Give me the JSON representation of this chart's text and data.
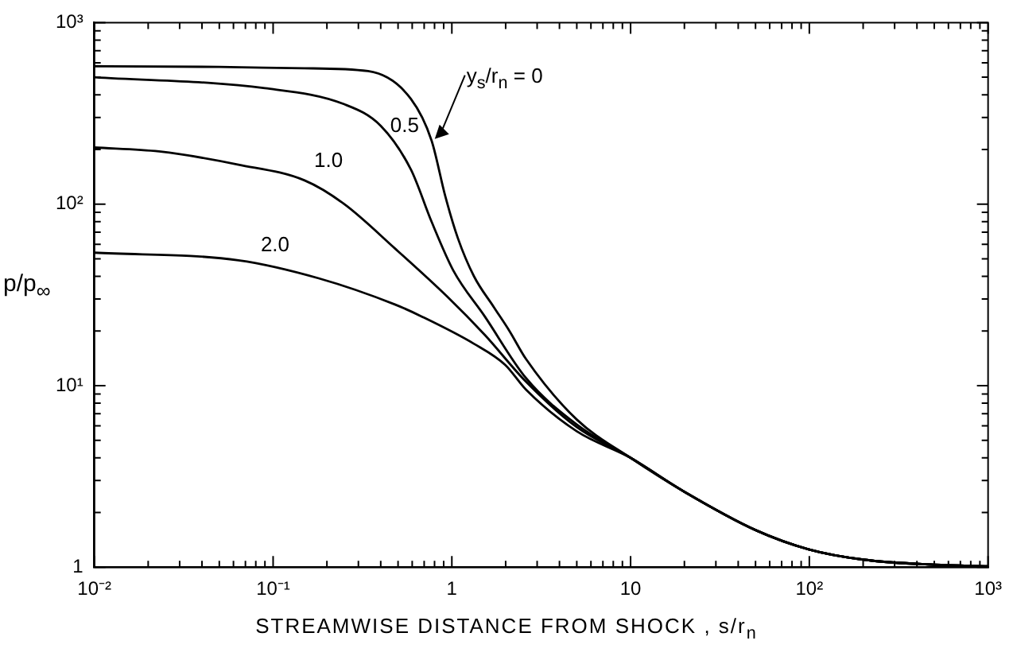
{
  "chart_data": {
    "type": "line",
    "xlabel": "STREAMWISE DISTANCE FROM SHOCK ,   s/r$_{n}$",
    "ylabel": "p/p$_{∞}$",
    "log": "xy",
    "color": "#000000",
    "line_style": "solid",
    "marker": "none",
    "grid": false,
    "legend": false,
    "xlim": [
      0.01,
      1000
    ],
    "ylim": [
      1,
      1000
    ],
    "xticks": [
      {
        "value": 0.01,
        "label": "10⁻²"
      },
      {
        "value": 0.02,
        "label": null
      },
      {
        "value": 0.03,
        "label": null
      },
      {
        "value": 0.04,
        "label": null
      },
      {
        "value": 0.05,
        "label": null
      },
      {
        "value": 0.06,
        "label": null
      },
      {
        "value": 0.07,
        "label": null
      },
      {
        "value": 0.08,
        "label": null
      },
      {
        "value": 0.09,
        "label": null
      },
      {
        "value": 0.1,
        "label": "10⁻¹"
      },
      {
        "value": 0.2,
        "label": null
      },
      {
        "value": 0.3,
        "label": null
      },
      {
        "value": 0.4,
        "label": null
      },
      {
        "value": 0.5,
        "label": null
      },
      {
        "value": 0.6,
        "label": null
      },
      {
        "value": 0.7,
        "label": null
      },
      {
        "value": 0.8,
        "label": null
      },
      {
        "value": 0.9,
        "label": null
      },
      1,
      {
        "value": 2,
        "label": null
      },
      {
        "value": 3,
        "label": null
      },
      {
        "value": 4,
        "label": null
      },
      {
        "value": 5,
        "label": null
      },
      {
        "value": 6,
        "label": null
      },
      {
        "value": 7,
        "label": null
      },
      {
        "value": 8,
        "label": null
      },
      {
        "value": 9,
        "label": null
      },
      10,
      {
        "value": 20,
        "label": null
      },
      {
        "value": 30,
        "label": null
      },
      {
        "value": 40,
        "label": null
      },
      {
        "value": 50,
        "label": null
      },
      {
        "value": 60,
        "label": null
      },
      {
        "value": 70,
        "label": null
      },
      {
        "value": 80,
        "label": null
      },
      {
        "value": 90,
        "label": null
      },
      {
        "value": 100,
        "label": "10²"
      },
      {
        "value": 200,
        "label": null
      },
      {
        "value": 300,
        "label": null
      },
      {
        "value": 400,
        "label": null
      },
      {
        "value": 500,
        "label": null
      },
      {
        "value": 600,
        "label": null
      },
      {
        "value": 700,
        "label": null
      },
      {
        "value": 800,
        "label": null
      },
      {
        "value": 900,
        "label": null
      },
      {
        "value": 1000,
        "label": "10³"
      }
    ],
    "yticks": [
      1,
      {
        "value": 2,
        "label": null
      },
      {
        "value": 3,
        "label": null
      },
      {
        "value": 4,
        "label": null
      },
      {
        "value": 5,
        "label": null
      },
      {
        "value": 6,
        "label": null
      },
      {
        "value": 7,
        "label": null
      },
      {
        "value": 8,
        "label": null
      },
      {
        "value": 9,
        "label": null
      },
      {
        "value": 10,
        "label": "10¹"
      },
      {
        "value": 20,
        "label": null
      },
      {
        "value": 30,
        "label": null
      },
      {
        "value": 40,
        "label": null
      },
      {
        "value": 50,
        "label": null
      },
      {
        "value": 60,
        "label": null
      },
      {
        "value": 70,
        "label": null
      },
      {
        "value": 80,
        "label": null
      },
      {
        "value": 90,
        "label": null
      },
      {
        "value": 100,
        "label": "10²"
      },
      {
        "value": 200,
        "label": null
      },
      {
        "value": 300,
        "label": null
      },
      {
        "value": 400,
        "label": null
      },
      {
        "value": 500,
        "label": null
      },
      {
        "value": 600,
        "label": null
      },
      {
        "value": 700,
        "label": null
      },
      {
        "value": 800,
        "label": null
      },
      {
        "value": 900,
        "label": null
      },
      {
        "value": 1000,
        "label": "10³"
      }
    ],
    "series": [
      {
        "color": "#000000",
        "x": [
          0.01,
          0.05,
          0.15,
          0.34,
          0.59,
          0.77,
          0.92,
          1.08,
          1.33,
          1.72,
          2.1,
          2.6,
          5,
          10,
          20,
          50,
          100,
          200,
          500,
          1000
        ],
        "values": [
          575,
          570,
          560,
          540,
          380,
          224,
          110,
          65,
          40,
          27,
          20,
          14,
          6.5,
          4,
          2.6,
          1.6,
          1.25,
          1.1,
          1.03,
          1.01
        ]
      },
      {
        "color": "#000000",
        "x": [
          0.01,
          0.09,
          0.25,
          0.4,
          0.59,
          0.77,
          1.02,
          1.53,
          2.6,
          5,
          10,
          20,
          50,
          100,
          200,
          500,
          1000
        ],
        "values": [
          500,
          435,
          355,
          270,
          155,
          80,
          43,
          24,
          11,
          6.1,
          4,
          2.6,
          1.6,
          1.25,
          1.1,
          1.03,
          1.01
        ]
      },
      {
        "color": "#000000",
        "x": [
          0.01,
          0.023,
          0.064,
          0.15,
          0.25,
          0.48,
          0.94,
          1.53,
          2.6,
          5,
          10,
          20,
          50,
          100,
          200,
          500,
          1000
        ],
        "values": [
          205,
          195,
          165,
          135,
          100,
          57,
          31,
          19,
          10.5,
          5.9,
          4,
          2.6,
          1.6,
          1.25,
          1.1,
          1.03,
          1.01
        ]
      },
      {
        "color": "#000000",
        "x": [
          0.01,
          0.064,
          0.18,
          0.48,
          0.68,
          1.33,
          1.99,
          2.6,
          5,
          10,
          20,
          50,
          100,
          200,
          500,
          1000
        ],
        "values": [
          54,
          49,
          39,
          28,
          24,
          17,
          13,
          9.5,
          5.6,
          4,
          2.6,
          1.6,
          1.25,
          1.1,
          1.03,
          1.01
        ]
      }
    ],
    "annotations": [
      {
        "text": "y$_{s}$/r$_{n}$ = 0",
        "x": 0.77,
        "y": 224
      },
      {
        "text": "0.5",
        "x": 0.4,
        "y": 270
      },
      {
        "text": "1.0",
        "x": 0.15,
        "y": 135
      },
      {
        "text": "2.0",
        "x": 0.064,
        "y": 49
      }
    ]
  }
}
